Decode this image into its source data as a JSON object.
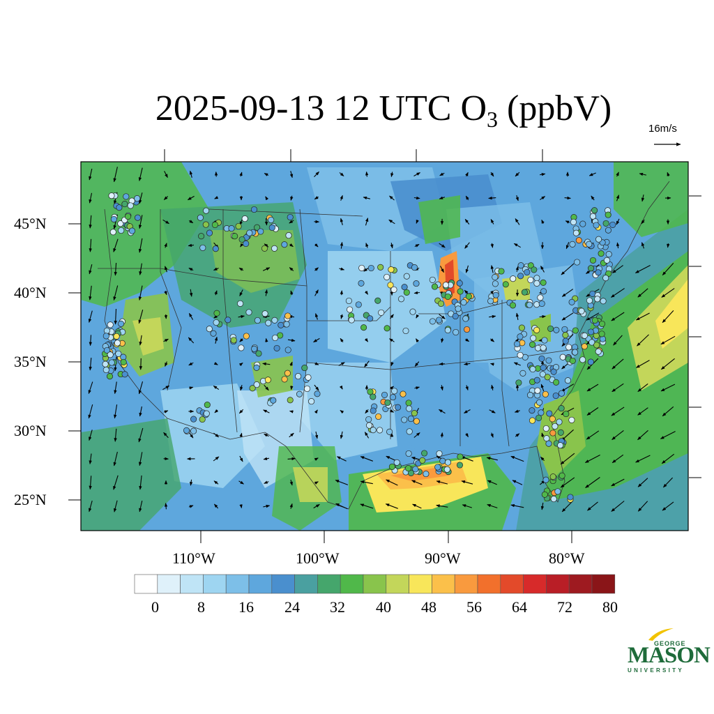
{
  "title_main": "2025-09-13 12 UTC O",
  "title_sub": "3",
  "title_unit": " (ppbV)",
  "wind_reference": "16m/s",
  "latitude_labels": [
    "45°N",
    "40°N",
    "35°N",
    "30°N",
    "25°N"
  ],
  "longitude_labels": [
    "110°W",
    "100°W",
    "90°W",
    "80°W"
  ],
  "colorbar": {
    "colors": [
      "#ffffff",
      "#dff1fa",
      "#bfe4f6",
      "#9ed5f1",
      "#7dbfe8",
      "#5ea7dd",
      "#4a8fce",
      "#4aa0a0",
      "#45a66c",
      "#50b84a",
      "#89c44c",
      "#c3d65a",
      "#f8e65a",
      "#fbc04a",
      "#f99a3e",
      "#f2702c",
      "#e34a2a",
      "#d72a2a",
      "#b91e26",
      "#9e1a20",
      "#8a1518"
    ],
    "labels": [
      "0",
      "8",
      "16",
      "24",
      "32",
      "40",
      "48",
      "56",
      "64",
      "72",
      "80"
    ]
  },
  "logo": {
    "line1": "GEORGE",
    "line2": "MASON",
    "line3": "UNIVERSITY"
  }
}
